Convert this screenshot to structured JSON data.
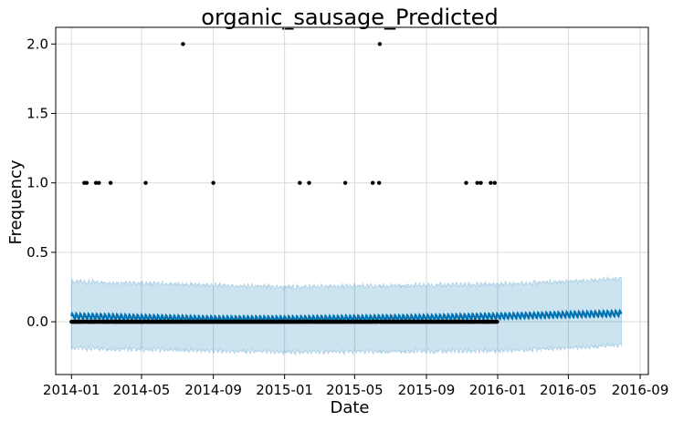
{
  "chart_data": {
    "type": "scatter",
    "title": "organic_sausage_Predicted",
    "xlabel": "Date",
    "ylabel": "Frequency",
    "x_range": [
      "2013-12-05",
      "2016-09-15"
    ],
    "ylim": [
      -0.38,
      2.12
    ],
    "x_ticks": [
      "2014-01",
      "2014-05",
      "2014-09",
      "2015-01",
      "2015-05",
      "2015-09",
      "2016-01",
      "2016-05",
      "2016-09"
    ],
    "y_ticks": [
      "0.0",
      "0.5",
      "1.0",
      "1.5",
      "2.0"
    ],
    "grid": true,
    "colors": {
      "forecast_line": "#0072B2",
      "uncertainty_band": "#0072B2",
      "actual_points": "#000000"
    },
    "forecast": {
      "start": "2014-01-01",
      "end": "2016-07-31",
      "trend": [
        {
          "x": "2014-01-01",
          "y": 0.04
        },
        {
          "x": "2014-09-01",
          "y": 0.02
        },
        {
          "x": "2015-01-01",
          "y": 0.02
        },
        {
          "x": "2015-09-01",
          "y": 0.03
        },
        {
          "x": "2016-01-01",
          "y": 0.04
        },
        {
          "x": "2016-07-31",
          "y": 0.06
        }
      ],
      "weekly_amplitude": 0.018,
      "upper": [
        {
          "x": "2014-01-01",
          "y": 0.29
        },
        {
          "x": "2015-01-01",
          "y": 0.25
        },
        {
          "x": "2016-01-01",
          "y": 0.27
        },
        {
          "x": "2016-07-31",
          "y": 0.31
        }
      ],
      "lower": [
        {
          "x": "2014-01-01",
          "y": -0.19
        },
        {
          "x": "2015-01-01",
          "y": -0.22
        },
        {
          "x": "2016-01-01",
          "y": -0.21
        },
        {
          "x": "2016-07-31",
          "y": -0.17
        }
      ]
    },
    "actual": {
      "zero_range": [
        "2014-01-01",
        "2015-12-31"
      ],
      "zero_value": 0.0,
      "nonzero": [
        {
          "x": "2014-01-23",
          "y": 1
        },
        {
          "x": "2014-01-27",
          "y": 1
        },
        {
          "x": "2014-02-12",
          "y": 1
        },
        {
          "x": "2014-02-17",
          "y": 1
        },
        {
          "x": "2014-03-09",
          "y": 1
        },
        {
          "x": "2014-05-08",
          "y": 1
        },
        {
          "x": "2014-07-11",
          "y": 2
        },
        {
          "x": "2014-09-01",
          "y": 1
        },
        {
          "x": "2015-01-27",
          "y": 1
        },
        {
          "x": "2015-02-12",
          "y": 1
        },
        {
          "x": "2015-04-15",
          "y": 1
        },
        {
          "x": "2015-06-01",
          "y": 1
        },
        {
          "x": "2015-06-12",
          "y": 1
        },
        {
          "x": "2015-06-13",
          "y": 2
        },
        {
          "x": "2015-11-08",
          "y": 1
        },
        {
          "x": "2015-11-27",
          "y": 1
        },
        {
          "x": "2015-12-03",
          "y": 1
        },
        {
          "x": "2015-12-20",
          "y": 1
        },
        {
          "x": "2015-12-27",
          "y": 1
        }
      ]
    }
  }
}
